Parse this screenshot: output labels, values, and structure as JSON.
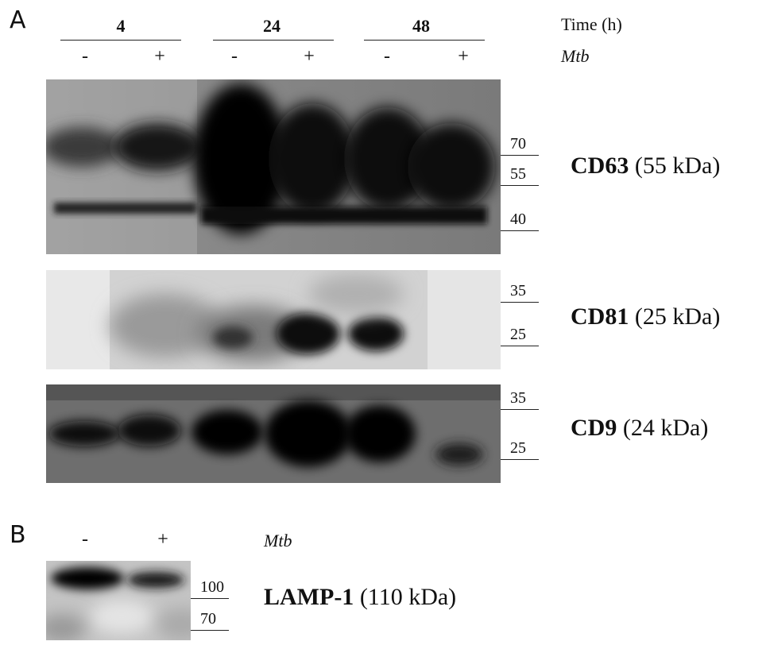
{
  "panel_a": {
    "letter": "A",
    "time_header": "Time (h)",
    "mtb_header": "Mtb",
    "time_groups": [
      "4",
      "24",
      "48"
    ],
    "lane_signs": [
      "-",
      "+",
      "-",
      "+",
      "-",
      "+"
    ],
    "blots": [
      {
        "name": "CD63",
        "size": "(55 kDa)",
        "markers": [
          "70",
          "55",
          "40"
        ]
      },
      {
        "name": "CD81",
        "size": "(25 kDa)",
        "markers": [
          "35",
          "25"
        ]
      },
      {
        "name": "CD9",
        "size": "(24 kDa)",
        "markers": [
          "35",
          "25"
        ]
      }
    ]
  },
  "panel_b": {
    "letter": "B",
    "lane_signs": [
      "-",
      "+"
    ],
    "mtb_header": "Mtb",
    "blot": {
      "name": "LAMP-1",
      "size": "(110 kDa)",
      "markers": [
        "100",
        "70"
      ]
    }
  }
}
